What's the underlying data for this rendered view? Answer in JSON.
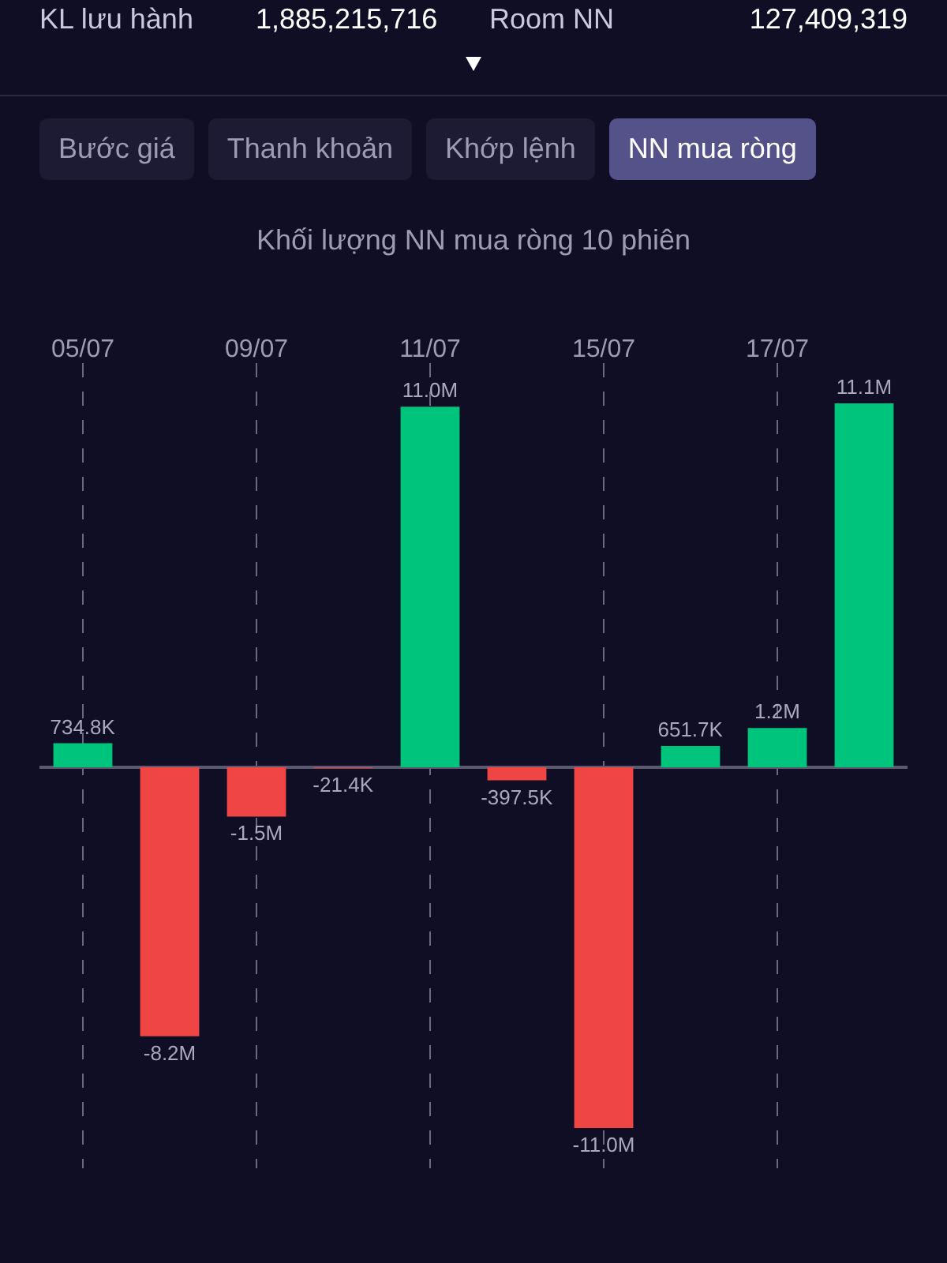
{
  "chart_data": {
    "type": "bar",
    "title": "Khối lượng NN mua ròng 10 phiên",
    "annotations": [
      "KL lưu hành",
      "1,885,215,716",
      "Room NN",
      "127,409,319",
      "Bước giá",
      "Thanh khoản",
      "Khớp lệnh",
      "NN mua ròng"
    ],
    "categories": [
      "05/07",
      null,
      "09/07",
      null,
      "11/07",
      null,
      "15/07",
      null,
      "17/07",
      null
    ],
    "values": [
      734800,
      -8200000,
      -1500000,
      -21400,
      11000000,
      -397500,
      -11000000,
      651700,
      1200000,
      11100000
    ],
    "value_labels": [
      "734.8K",
      "-8.2M",
      "-1.5M",
      "-21.4K",
      "11.0M",
      "-397.5K",
      "-11.0M",
      "651.7K",
      "1.2M",
      "11.1M"
    ],
    "colors": [
      "#00c47c",
      "#f04545",
      "#f04545",
      "#f04545",
      "#00c47c",
      "#f04545",
      "#f04545",
      "#00c47c",
      "#00c47c",
      "#00c47c"
    ],
    "grid": "x"
  }
}
